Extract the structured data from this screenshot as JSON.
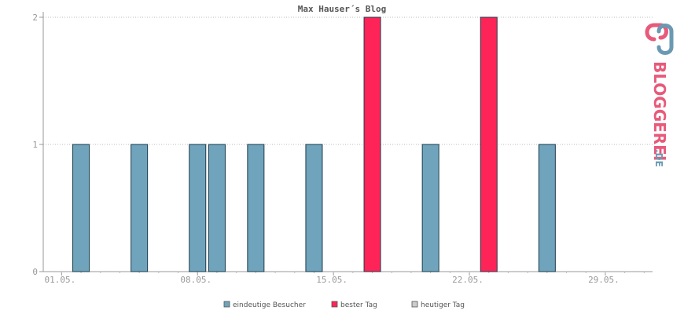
{
  "chart_data": {
    "type": "bar",
    "title": "Max Hauser´s Blog",
    "x_tick_labels": [
      "01.05.",
      "08.05.",
      "15.05.",
      "22.05.",
      "29.05."
    ],
    "y_tick_labels": [
      "0",
      "1",
      "2"
    ],
    "ylim": [
      0,
      2
    ],
    "grid": "horizontal dotted",
    "series": [
      {
        "name": "eindeutige Besucher",
        "color": "#6fa4bc",
        "points": [
          {
            "day": 2,
            "value": 1
          },
          {
            "day": 5,
            "value": 1
          },
          {
            "day": 8,
            "value": 1
          },
          {
            "day": 9,
            "value": 1
          },
          {
            "day": 11,
            "value": 1
          },
          {
            "day": 14,
            "value": 1
          },
          {
            "day": 20,
            "value": 1
          },
          {
            "day": 26,
            "value": 1
          }
        ]
      },
      {
        "name": "bester Tag",
        "color": "#ff2457",
        "points": [
          {
            "day": 17,
            "value": 2
          },
          {
            "day": 23,
            "value": 2
          }
        ]
      },
      {
        "name": "heutiger Tag",
        "color": "#cccccc",
        "points": []
      }
    ],
    "legend_position": "bottom"
  },
  "logo": {
    "name": "BLOGGEREI",
    "suffix": ".DE",
    "color_primary": "#e85a7a",
    "color_secondary": "#6a9ab3"
  }
}
